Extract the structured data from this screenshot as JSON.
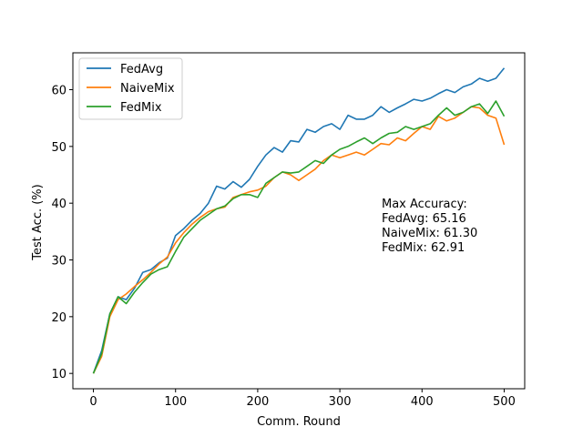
{
  "chart_data": {
    "type": "line",
    "title": "",
    "xlabel": "Comm. Round",
    "ylabel": "Test Acc. (%)",
    "xlim": [
      -25,
      525
    ],
    "ylim": [
      7.3,
      66.5
    ],
    "xticks": [
      0,
      100,
      200,
      300,
      400,
      500
    ],
    "yticks": [
      10,
      20,
      30,
      40,
      50,
      60
    ],
    "grid": false,
    "legend_position": "top-left",
    "x": [
      0,
      10,
      20,
      30,
      40,
      50,
      60,
      70,
      80,
      90,
      100,
      110,
      120,
      130,
      140,
      150,
      160,
      170,
      180,
      190,
      200,
      210,
      220,
      230,
      240,
      250,
      260,
      270,
      280,
      290,
      300,
      310,
      320,
      330,
      340,
      350,
      360,
      370,
      380,
      390,
      400,
      410,
      420,
      430,
      440,
      450,
      460,
      470,
      480,
      490,
      500
    ],
    "series": [
      {
        "name": "FedAvg",
        "color": "#1f77b4",
        "values": [
          10.0,
          14.0,
          20.5,
          23.5,
          23.0,
          25.0,
          27.8,
          28.3,
          29.5,
          30.3,
          34.3,
          35.5,
          37.0,
          38.2,
          40.0,
          43.0,
          42.5,
          43.8,
          42.8,
          44.2,
          46.5,
          48.5,
          49.8,
          49.0,
          51.0,
          50.8,
          53.0,
          52.5,
          53.5,
          54.0,
          53.0,
          55.5,
          54.8,
          54.8,
          55.5,
          57.0,
          56.0,
          56.8,
          57.5,
          58.3,
          58.0,
          58.5,
          59.3,
          60.0,
          59.5,
          60.5,
          61.0,
          62.0,
          61.5,
          62.0,
          63.8
        ]
      },
      {
        "name": "NaiveMix",
        "color": "#ff7f0e",
        "values": [
          10.0,
          13.0,
          20.0,
          23.0,
          24.0,
          25.3,
          26.5,
          27.8,
          29.3,
          30.5,
          33.0,
          34.8,
          36.3,
          37.5,
          38.5,
          39.0,
          39.3,
          41.0,
          41.5,
          42.0,
          42.3,
          43.0,
          44.5,
          45.5,
          45.0,
          44.0,
          45.0,
          46.0,
          47.5,
          48.5,
          48.0,
          48.5,
          49.0,
          48.5,
          49.5,
          50.5,
          50.3,
          51.5,
          51.0,
          52.3,
          53.5,
          53.0,
          55.3,
          54.5,
          55.0,
          56.0,
          57.0,
          56.8,
          55.5,
          55.0,
          50.3
        ]
      },
      {
        "name": "FedMix",
        "color": "#2ca02c",
        "values": [
          10.0,
          13.5,
          20.5,
          23.5,
          22.3,
          24.3,
          26.0,
          27.5,
          28.3,
          28.8,
          31.5,
          34.0,
          35.5,
          37.0,
          38.0,
          39.0,
          39.5,
          40.8,
          41.5,
          41.5,
          41.0,
          43.5,
          44.5,
          45.5,
          45.3,
          45.5,
          46.5,
          47.5,
          47.0,
          48.5,
          49.5,
          50.0,
          50.8,
          51.5,
          50.5,
          51.5,
          52.3,
          52.5,
          53.5,
          53.0,
          53.5,
          54.0,
          55.5,
          56.8,
          55.5,
          56.0,
          57.0,
          57.5,
          55.8,
          58.0,
          55.3
        ]
      }
    ],
    "annotation": {
      "lines": [
        "Max Accuracy:",
        "FedAvg: 65.16",
        "NaiveMix: 61.30",
        "FedMix: 62.91"
      ]
    }
  }
}
